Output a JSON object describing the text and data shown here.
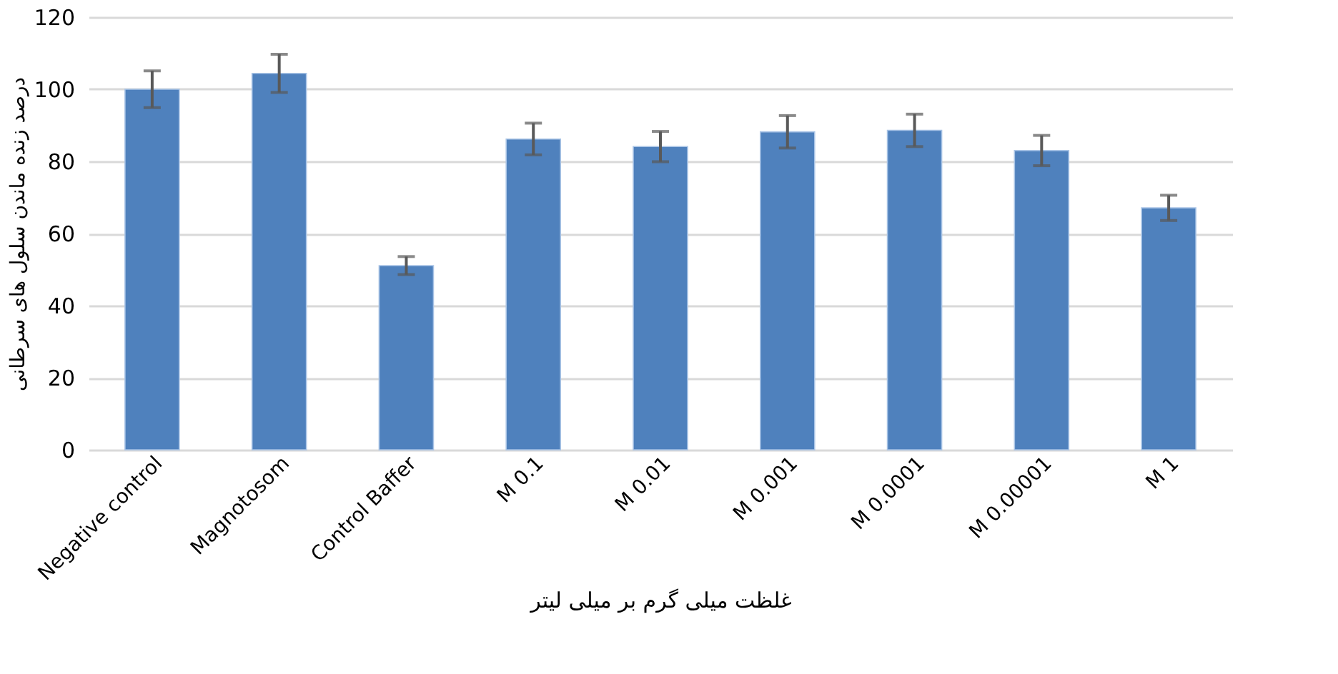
{
  "chart_data": {
    "type": "bar",
    "categories": [
      "Negative control",
      "Magnotosom",
      "Control Baffer",
      "M 0.1",
      "M 0.01",
      "M 0.001",
      "M 0.0001",
      "M 0.00001",
      "M 1"
    ],
    "values": [
      100,
      104.4,
      51.1,
      86.2,
      84.1,
      88.2,
      88.6,
      83.0,
      67.1
    ],
    "errors": [
      5.1,
      5.3,
      2.5,
      4.4,
      4.2,
      4.5,
      4.5,
      4.2,
      3.5
    ],
    "color": "#4f81bd",
    "xlabel": "غلظت میلی گرم بر میلی لیتر",
    "ylabel": "درصد زنده ماندن سلول های سرطانی",
    "ylim": [
      0,
      120
    ],
    "yticks": [
      0,
      20,
      40,
      60,
      80,
      100,
      120
    ],
    "grid": "y"
  }
}
